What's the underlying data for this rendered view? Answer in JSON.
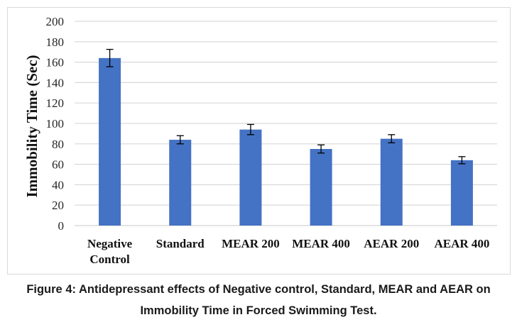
{
  "chart_data": {
    "type": "bar",
    "title": "",
    "xlabel": "",
    "ylabel": "Immobility  Time (Sec)",
    "ylim": [
      0,
      200
    ],
    "yticks": [
      0,
      20,
      40,
      60,
      80,
      100,
      120,
      140,
      160,
      180,
      200
    ],
    "grid": true,
    "legend": "none",
    "bar_color": "#4472C4",
    "categories": [
      [
        "Negative",
        "Control"
      ],
      [
        "Standard"
      ],
      [
        "MEAR 200"
      ],
      [
        "MEAR 400"
      ],
      [
        "AEAR 200"
      ],
      [
        "AEAR 400"
      ]
    ],
    "series": [
      {
        "name": "Immobility Time",
        "values": [
          164,
          84,
          94,
          75,
          85,
          64
        ],
        "error": [
          8.5,
          4,
          5,
          4,
          4,
          3.5
        ]
      }
    ]
  },
  "caption": {
    "line1": "Figure 4: Antidepressant effects of Negative control, Standard, MEAR and AEAR on",
    "line2": "Immobility Time in Forced Swimming Test."
  }
}
